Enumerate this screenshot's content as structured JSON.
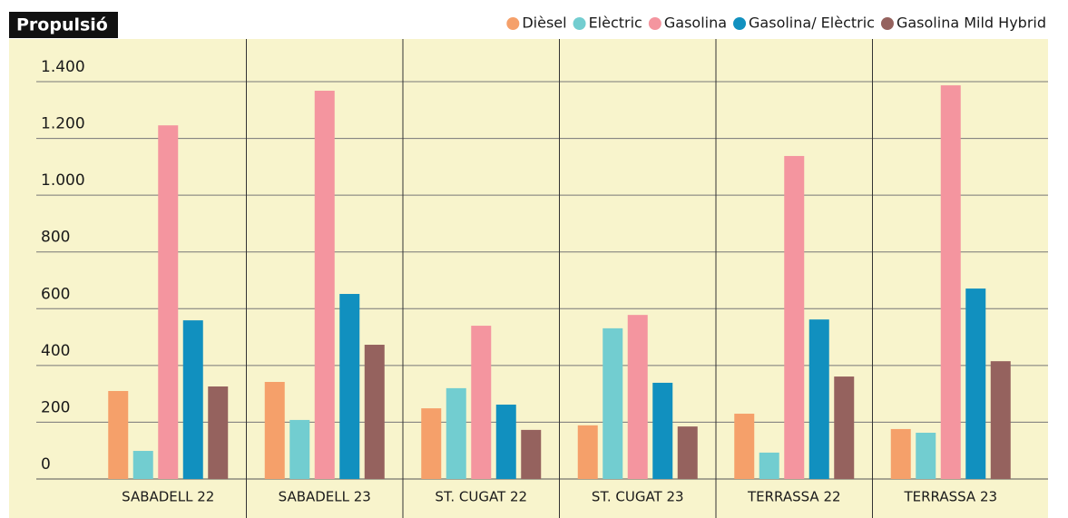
{
  "chart_data": {
    "type": "bar",
    "title": "Propulsió",
    "categories": [
      "SABADELL 22",
      "SABADELL 23",
      "ST. CUGAT 22",
      "ST. CUGAT 23",
      "TERRASSA 22",
      "TERRASSA 23"
    ],
    "series": [
      {
        "name": "Dièsel",
        "color": "#f5a06a",
        "values": [
          310,
          342,
          249,
          189,
          230,
          176
        ]
      },
      {
        "name": "Elèctric",
        "color": "#72cdd0",
        "values": [
          99,
          208,
          320,
          531,
          93,
          163
        ]
      },
      {
        "name": "Gasolina",
        "color": "#f4959f",
        "values": [
          1246,
          1368,
          540,
          578,
          1138,
          1387
        ]
      },
      {
        "name": "Gasolina/ Elèctric",
        "color": "#1190bf",
        "values": [
          559,
          652,
          262,
          339,
          562,
          671
        ]
      },
      {
        "name": "Gasolina Mild Hybrid",
        "color": "#95625e",
        "values": [
          326,
          473,
          173,
          185,
          361,
          415
        ]
      }
    ],
    "ylim": [
      0,
      1400
    ],
    "yticks": [
      0,
      200,
      400,
      600,
      800,
      {
        "value": 1000,
        "label": "1.000"
      },
      {
        "value": 1200,
        "label": "1.200"
      },
      {
        "value": 1400,
        "label": "1.400"
      }
    ],
    "grid": true,
    "legend": "top-right"
  }
}
